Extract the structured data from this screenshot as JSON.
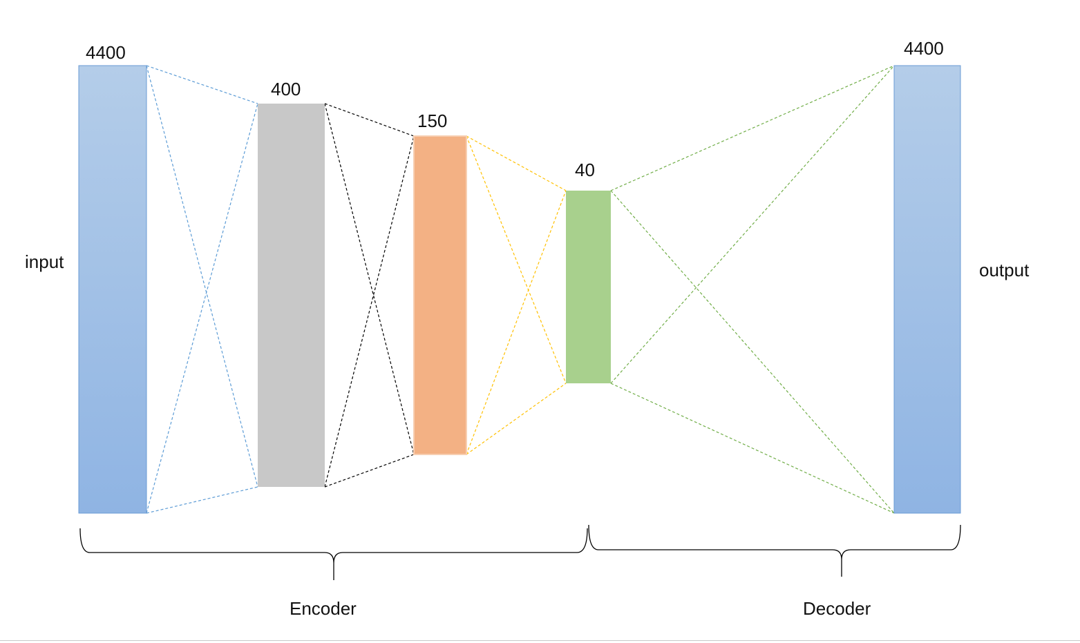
{
  "diagram": {
    "input_label": "input",
    "output_label": "output",
    "encoder_label": "Encoder",
    "decoder_label": "Decoder",
    "layers": [
      {
        "id": "input",
        "size": "4400"
      },
      {
        "id": "hidden1",
        "size": "400"
      },
      {
        "id": "hidden2",
        "size": "150"
      },
      {
        "id": "bottleneck",
        "size": "40"
      },
      {
        "id": "output",
        "size": "4400"
      }
    ]
  },
  "colors": {
    "input_top": "#b4cde9",
    "input_bottom": "#8fb4e3",
    "input_border": "#6a9bd4",
    "hidden1": "#c8c8c8",
    "hidden2": "#f3b184",
    "hidden2_border": "#f7cfb2",
    "bottleneck": "#a8d08d",
    "edges_input_hidden1": "#5b9bd5",
    "edges_hidden1_hidden2": "#000000",
    "edges_hidden2_bottleneck": "#ffc000",
    "edges_bottleneck_output": "#70ad47",
    "brace": "#000000"
  }
}
